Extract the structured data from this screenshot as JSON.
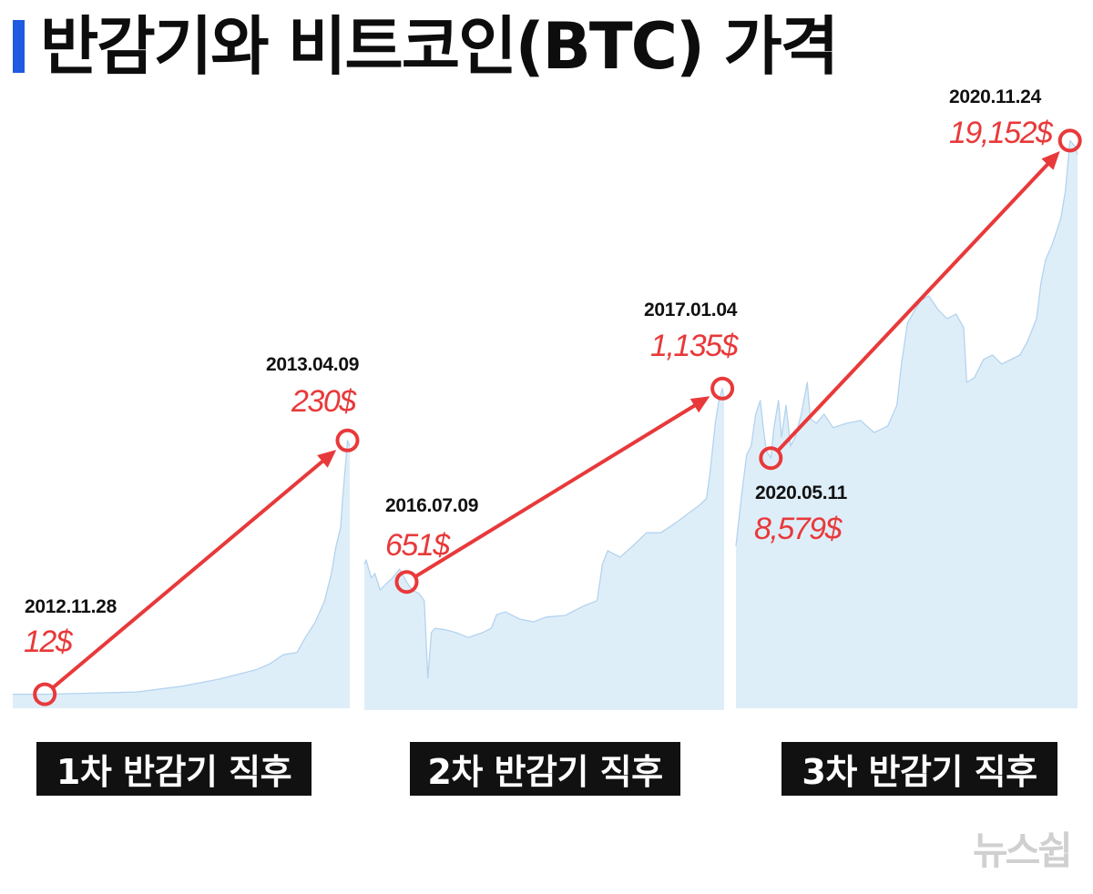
{
  "title": "반감기와 비트코인(BTC) 가격",
  "colors": {
    "accent_bar": "#1f5ae0",
    "arrow": "#e8393a",
    "value_text": "#e8393a",
    "area_fill": "#deeef9",
    "area_line": "#b4d3ee",
    "caption_box": "#111111",
    "watermark": "#d0d0d0"
  },
  "chart_data": [
    {
      "type": "area",
      "caption": "1차 반감기 직후",
      "xlim": [
        "2012-11-14",
        "2013-04-10"
      ],
      "ylim": [
        0,
        530
      ],
      "series": [
        {
          "x": [
            "2012-11-14",
            "2012-11-28",
            "2012-12-18",
            "2013-01-07",
            "2013-01-27",
            "2013-02-12",
            "2013-02-28",
            "2013-03-06",
            "2013-03-12",
            "2013-03-18",
            "2013-03-22",
            "2013-03-26",
            "2013-03-30",
            "2013-04-02",
            "2013-04-04",
            "2013-04-06",
            "2013-04-07",
            "2013-04-08",
            "2013-04-09",
            "2013-04-10"
          ],
          "y": [
            12,
            12,
            13,
            14,
            19,
            25,
            33,
            38,
            46,
            48,
            62,
            74,
            92,
            116,
            139,
            155,
            182,
            206,
            230,
            225
          ]
        }
      ],
      "annotations": [
        {
          "date": "2012.11.28",
          "value": 12,
          "value_label": "12$"
        },
        {
          "date": "2013.04.09",
          "value": 230,
          "value_label": "230$"
        }
      ]
    },
    {
      "type": "area",
      "caption": "2차 반감기 직후",
      "xlim": [
        "2016-06-15",
        "2017-01-05"
      ],
      "ylim": [
        330,
        1880
      ],
      "series": [
        {
          "x": [
            "2016-06-15",
            "2016-06-16",
            "2016-06-19",
            "2016-06-21",
            "2016-06-24",
            "2016-06-28",
            "2016-07-01",
            "2016-07-05",
            "2016-07-09",
            "2016-07-12",
            "2016-07-16",
            "2016-07-19",
            "2016-07-21",
            "2016-07-23",
            "2016-07-25",
            "2016-07-31",
            "2016-08-06",
            "2016-08-13",
            "2016-08-21",
            "2016-08-26",
            "2016-08-29",
            "2016-09-03",
            "2016-09-11",
            "2016-09-19",
            "2016-09-26",
            "2016-10-07",
            "2016-10-17",
            "2016-10-25",
            "2016-10-28",
            "2016-10-31",
            "2016-11-07",
            "2016-11-14",
            "2016-11-22",
            "2016-11-30",
            "2016-12-08",
            "2016-12-15",
            "2016-12-22",
            "2016-12-26",
            "2016-12-28",
            "2016-12-31",
            "2017-01-02",
            "2017-01-04",
            "2017-01-05"
          ],
          "y": [
            695,
            706,
            661,
            672,
            631,
            649,
            661,
            683,
            651,
            631,
            622,
            604,
            410,
            524,
            535,
            531,
            524,
            512,
            524,
            535,
            569,
            576,
            558,
            551,
            563,
            567,
            590,
            604,
            695,
            729,
            713,
            740,
            774,
            774,
            797,
            820,
            843,
            859,
            923,
            1048,
            1105,
            1135,
            1105
          ]
        }
      ],
      "annotations": [
        {
          "date": "2016.07.09",
          "value": 651,
          "value_label": "651$"
        },
        {
          "date": "2017.01.04",
          "value": 1135,
          "value_label": "1,135$"
        }
      ]
    },
    {
      "type": "area",
      "caption": "3차 반감기 직후",
      "xlim": [
        "2020-04-18",
        "2020-11-29"
      ],
      "ylim": [
        250,
        20800
      ],
      "series": [
        {
          "x": [
            "2020-04-18",
            "2020-04-20",
            "2020-04-22",
            "2020-04-25",
            "2020-04-28",
            "2020-05-01",
            "2020-05-04",
            "2020-05-06",
            "2020-05-08",
            "2020-05-11",
            "2020-05-13",
            "2020-05-16",
            "2020-05-18",
            "2020-05-21",
            "2020-05-24",
            "2020-05-27",
            "2020-05-31",
            "2020-06-04",
            "2020-06-06",
            "2020-06-10",
            "2020-06-15",
            "2020-06-21",
            "2020-06-30",
            "2020-07-09",
            "2020-07-18",
            "2020-07-27",
            "2020-08-02",
            "2020-08-05",
            "2020-08-09",
            "2020-08-14",
            "2020-08-18",
            "2020-08-23",
            "2020-08-29",
            "2020-09-04",
            "2020-09-10",
            "2020-09-15",
            "2020-09-17",
            "2020-09-22",
            "2020-09-28",
            "2020-10-04",
            "2020-10-10",
            "2020-10-16",
            "2020-10-22",
            "2020-10-27",
            "2020-11-02",
            "2020-11-05",
            "2020-11-08",
            "2020-11-12",
            "2020-11-15",
            "2020-11-18",
            "2020-11-21",
            "2020-11-24",
            "2020-11-27",
            "2020-11-29"
          ],
          "y": [
            5650,
            6550,
            7460,
            8680,
            8980,
            10040,
            10500,
            9590,
            8830,
            8579,
            9590,
            10500,
            9280,
            10340,
            8980,
            9280,
            10040,
            11100,
            9890,
            9740,
            10040,
            9590,
            9740,
            9830,
            9430,
            9650,
            10340,
            11710,
            13070,
            13530,
            13830,
            13980,
            13530,
            13220,
            13370,
            12920,
            11100,
            11250,
            11860,
            12010,
            11710,
            11860,
            12010,
            12460,
            13220,
            14440,
            15190,
            15650,
            16100,
            16560,
            17470,
            19152,
            18980,
            18680
          ]
        }
      ],
      "annotations": [
        {
          "date": "2020.05.11",
          "value": 8579,
          "value_label": "8,579$"
        },
        {
          "date": "2020.11.24",
          "value": 19152,
          "value_label": "19,152$"
        }
      ]
    }
  ],
  "watermark": "뉴스쉽"
}
